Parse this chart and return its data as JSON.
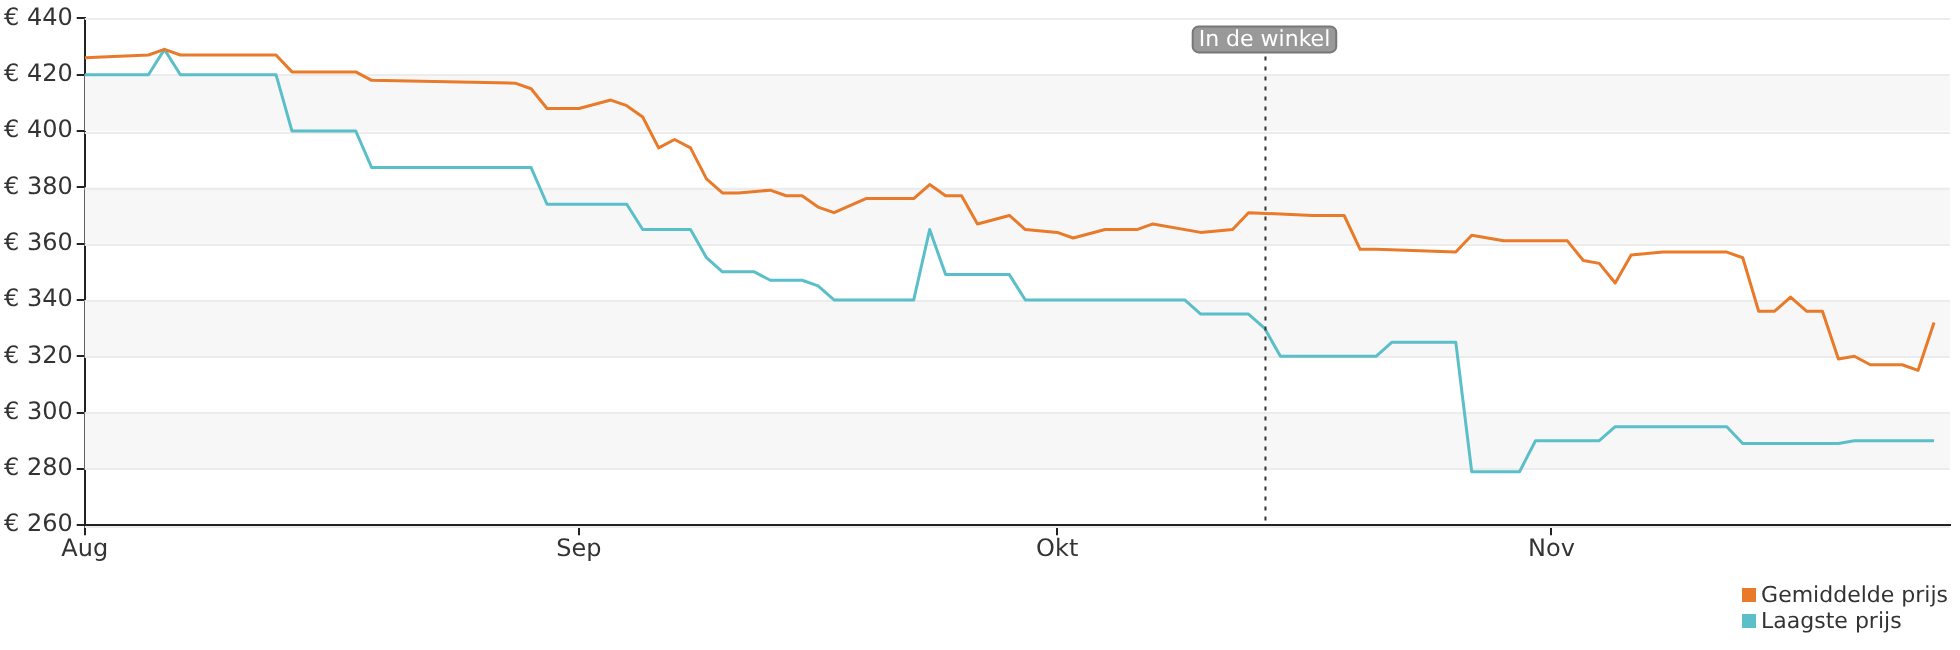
{
  "chart_data": {
    "type": "line",
    "xlim": [
      "--08-01",
      "--11-26"
    ],
    "xticks": [
      {
        "value": "--08-01",
        "label": "Aug"
      },
      {
        "value": "--09-01",
        "label": "Sep"
      },
      {
        "value": "--10-01",
        "label": "Okt"
      },
      {
        "value": "--11-01",
        "label": "Nov"
      }
    ],
    "ylim": [
      260,
      440
    ],
    "yticks": [
      {
        "value": 260,
        "label": "€ 260"
      },
      {
        "value": 280,
        "label": "€ 280"
      },
      {
        "value": 300,
        "label": "€ 300"
      },
      {
        "value": 320,
        "label": "€ 320"
      },
      {
        "value": 340,
        "label": "€ 340"
      },
      {
        "value": 360,
        "label": "€ 360"
      },
      {
        "value": 380,
        "label": "€ 380"
      },
      {
        "value": 400,
        "label": "€ 400"
      },
      {
        "value": 420,
        "label": "€ 420"
      },
      {
        "value": 440,
        "label": "€ 440"
      }
    ],
    "grid": "y",
    "legend": "bottom right",
    "marker": "none",
    "line_style": "solid",
    "ref_lines": [
      {
        "axis": "x",
        "value": "--10-14",
        "label": "In de winkel",
        "color": "#333333",
        "line_style": "dotted"
      }
    ],
    "series": [
      {
        "name": "Gemiddelde prijs",
        "color": "#e87a2a",
        "x": [
          "--08-01",
          "--08-05",
          "--08-06",
          "--08-07",
          "--08-13",
          "--08-14",
          "--08-18",
          "--08-19",
          "--08-28",
          "--08-29",
          "--08-30",
          "--09-01",
          "--09-03",
          "--09-04",
          "--09-05",
          "--09-06",
          "--09-07",
          "--09-08",
          "--09-09",
          "--09-10",
          "--09-11",
          "--09-13",
          "--09-14",
          "--09-15",
          "--09-16",
          "--09-17",
          "--09-19",
          "--09-22",
          "--09-23",
          "--09-24",
          "--09-25",
          "--09-26",
          "--09-28",
          "--09-29",
          "--10-01",
          "--10-02",
          "--10-04",
          "--10-06",
          "--10-07",
          "--10-10",
          "--10-12",
          "--10-13",
          "--10-17",
          "--10-19",
          "--10-20",
          "--10-21",
          "--10-26",
          "--10-27",
          "--10-29",
          "--11-02",
          "--11-03",
          "--11-04",
          "--11-05",
          "--11-06",
          "--11-08",
          "--11-12",
          "--11-13",
          "--11-14",
          "--11-15",
          "--11-16",
          "--11-17",
          "--11-18",
          "--11-19",
          "--11-20",
          "--11-21",
          "--11-23",
          "--11-24",
          "--11-25"
        ],
        "values": [
          426,
          427,
          429,
          427,
          427,
          421,
          421,
          418,
          417,
          415,
          408,
          408,
          411,
          409,
          405,
          394,
          397,
          394,
          383,
          378,
          378,
          379,
          377,
          377,
          373,
          371,
          376,
          376,
          381,
          377,
          377,
          367,
          370,
          365,
          364,
          362,
          365,
          365,
          367,
          364,
          365,
          371,
          370,
          370,
          358,
          358,
          357,
          363,
          361,
          361,
          354,
          353,
          346,
          356,
          357,
          357,
          355,
          336,
          336,
          341,
          336,
          336,
          319,
          320,
          317,
          317,
          315,
          332
        ]
      },
      {
        "name": "Laagste prijs",
        "color": "#5bbfc9",
        "x": [
          "--08-01",
          "--08-05",
          "--08-06",
          "--08-07",
          "--08-13",
          "--08-14",
          "--08-18",
          "--08-19",
          "--08-29",
          "--08-30",
          "--09-04",
          "--09-05",
          "--09-08",
          "--09-09",
          "--09-10",
          "--09-12",
          "--09-13",
          "--09-15",
          "--09-16",
          "--09-17",
          "--09-22",
          "--09-23",
          "--09-24",
          "--09-28",
          "--09-29",
          "--10-09",
          "--10-10",
          "--10-13",
          "--10-14",
          "--10-15",
          "--10-21",
          "--10-22",
          "--10-26",
          "--10-27",
          "--10-30",
          "--10-31",
          "--11-04",
          "--11-05",
          "--11-12",
          "--11-13",
          "--11-19",
          "--11-20",
          "--11-25"
        ],
        "values": [
          420,
          420,
          429,
          420,
          420,
          400,
          400,
          387,
          387,
          374,
          374,
          365,
          365,
          355,
          350,
          350,
          347,
          347,
          345,
          340,
          340,
          365,
          349,
          349,
          340,
          340,
          335,
          335,
          330,
          320,
          320,
          325,
          325,
          279,
          279,
          290,
          290,
          295,
          295,
          289,
          289,
          290,
          290
        ]
      }
    ]
  }
}
